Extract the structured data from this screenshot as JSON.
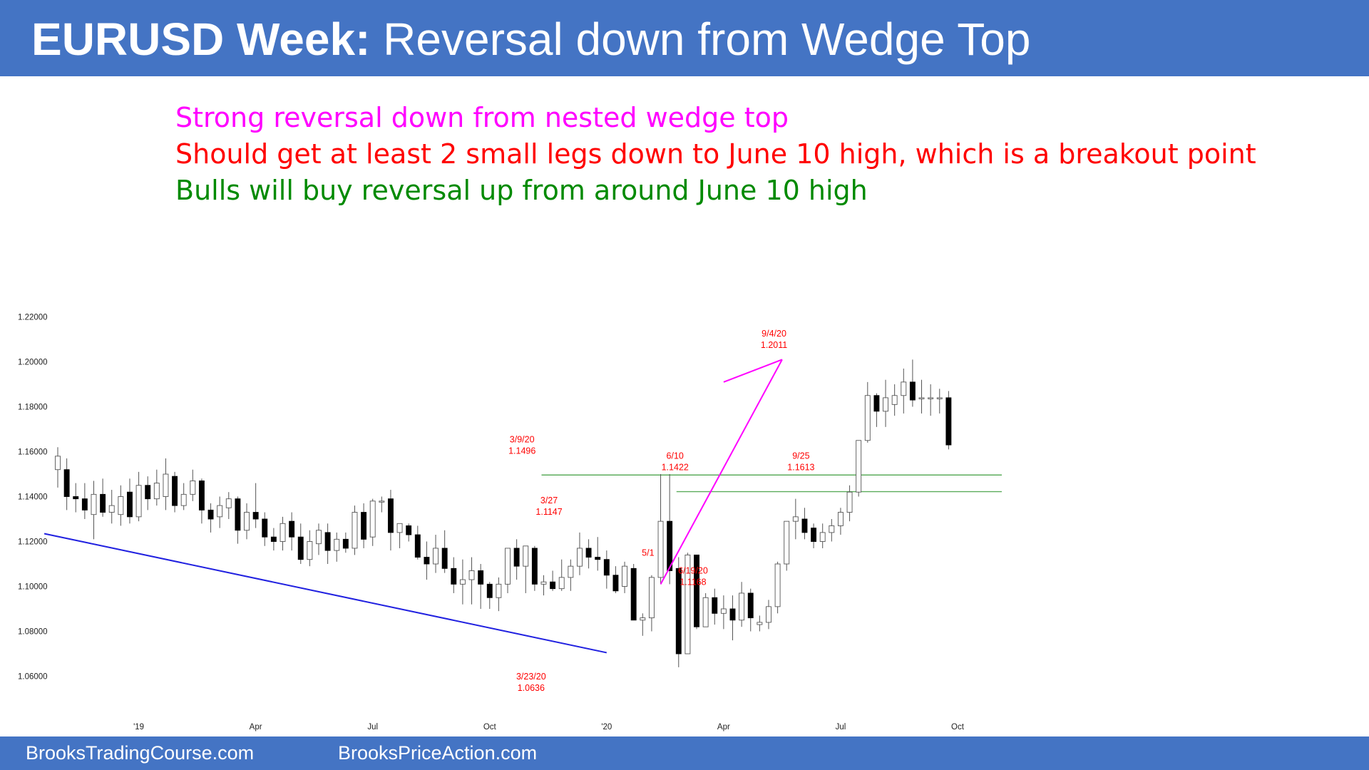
{
  "header": {
    "title_bold": "EURUSD Week:",
    "title_rest": " Reversal down from Wedge Top"
  },
  "notes": [
    {
      "text": "Strong reversal down from nested wedge top",
      "color": "#ff00ff"
    },
    {
      "text": "Should get at least 2 small legs down to June 10 high, which is a breakout point",
      "color": "#ff0000"
    },
    {
      "text": "Bulls will buy reversal up from around June 10 high",
      "color": "#008a00"
    }
  ],
  "footer": {
    "left": "BrooksTradingCourse.com",
    "right": "BrooksPriceAction.com"
  },
  "chart_data": {
    "type": "candlestick",
    "title": "",
    "xlabel": "",
    "ylabel": "",
    "ylim": [
      1.055,
      1.225
    ],
    "y_ticks": [
      "1.22000",
      "1.20000",
      "1.18000",
      "1.16000",
      "1.14000",
      "1.12000",
      "1.10000",
      "1.08000",
      "1.06000"
    ],
    "x_ticks": [
      {
        "label": "'19",
        "bar": 9
      },
      {
        "label": "Apr",
        "bar": 22
      },
      {
        "label": "Jul",
        "bar": 35
      },
      {
        "label": "Oct",
        "bar": 48
      },
      {
        "label": "'20",
        "bar": 61
      },
      {
        "label": "Apr",
        "bar": 74
      },
      {
        "label": "Jul",
        "bar": 87
      },
      {
        "label": "Oct",
        "bar": 100
      }
    ],
    "colors": {
      "bull": "#ffffff",
      "bear": "#000000",
      "wedge": "#ff00ff",
      "trendline": "#2020e0",
      "levels": "#5cac5c",
      "annotation": "#ff0000"
    },
    "candles": [
      [
        1.152,
        1.162,
        1.144,
        1.158
      ],
      [
        1.152,
        1.157,
        1.134,
        1.14
      ],
      [
        1.14,
        1.146,
        1.133,
        1.139
      ],
      [
        1.139,
        1.146,
        1.13,
        1.134
      ],
      [
        1.132,
        1.147,
        1.121,
        1.141
      ],
      [
        1.141,
        1.148,
        1.131,
        1.133
      ],
      [
        1.133,
        1.143,
        1.128,
        1.136
      ],
      [
        1.132,
        1.145,
        1.127,
        1.14
      ],
      [
        1.142,
        1.148,
        1.128,
        1.131
      ],
      [
        1.131,
        1.151,
        1.129,
        1.145
      ],
      [
        1.145,
        1.149,
        1.134,
        1.139
      ],
      [
        1.139,
        1.152,
        1.136,
        1.146
      ],
      [
        1.14,
        1.157,
        1.134,
        1.15
      ],
      [
        1.149,
        1.151,
        1.133,
        1.136
      ],
      [
        1.136,
        1.146,
        1.134,
        1.141
      ],
      [
        1.141,
        1.152,
        1.138,
        1.147
      ],
      [
        1.147,
        1.148,
        1.128,
        1.134
      ],
      [
        1.134,
        1.137,
        1.124,
        1.13
      ],
      [
        1.131,
        1.14,
        1.126,
        1.136
      ],
      [
        1.135,
        1.142,
        1.13,
        1.139
      ],
      [
        1.139,
        1.14,
        1.119,
        1.125
      ],
      [
        1.125,
        1.137,
        1.121,
        1.133
      ],
      [
        1.133,
        1.146,
        1.126,
        1.13
      ],
      [
        1.13,
        1.133,
        1.118,
        1.122
      ],
      [
        1.122,
        1.126,
        1.116,
        1.12
      ],
      [
        1.12,
        1.131,
        1.116,
        1.128
      ],
      [
        1.129,
        1.133,
        1.116,
        1.122
      ],
      [
        1.122,
        1.128,
        1.11,
        1.112
      ],
      [
        1.112,
        1.125,
        1.109,
        1.12
      ],
      [
        1.119,
        1.128,
        1.114,
        1.125
      ],
      [
        1.124,
        1.128,
        1.11,
        1.116
      ],
      [
        1.116,
        1.124,
        1.111,
        1.121
      ],
      [
        1.121,
        1.124,
        1.115,
        1.117
      ],
      [
        1.117,
        1.136,
        1.114,
        1.133
      ],
      [
        1.133,
        1.137,
        1.117,
        1.121
      ],
      [
        1.122,
        1.139,
        1.118,
        1.138
      ],
      [
        1.138,
        1.14,
        1.133,
        1.138
      ],
      [
        1.139,
        1.143,
        1.116,
        1.124
      ],
      [
        1.124,
        1.127,
        1.117,
        1.128
      ],
      [
        1.127,
        1.128,
        1.12,
        1.123
      ],
      [
        1.123,
        1.127,
        1.112,
        1.113
      ],
      [
        1.113,
        1.12,
        1.103,
        1.11
      ],
      [
        1.11,
        1.123,
        1.106,
        1.117
      ],
      [
        1.117,
        1.125,
        1.106,
        1.108
      ],
      [
        1.108,
        1.113,
        1.097,
        1.101
      ],
      [
        1.101,
        1.112,
        1.092,
        1.103
      ],
      [
        1.103,
        1.113,
        1.092,
        1.107
      ],
      [
        1.107,
        1.11,
        1.09,
        1.101
      ],
      [
        1.101,
        1.102,
        1.09,
        1.095
      ],
      [
        1.095,
        1.104,
        1.089,
        1.101
      ],
      [
        1.101,
        1.117,
        1.097,
        1.117
      ],
      [
        1.117,
        1.121,
        1.103,
        1.109
      ],
      [
        1.109,
        1.118,
        1.097,
        1.118
      ],
      [
        1.117,
        1.118,
        1.098,
        1.101
      ],
      [
        1.101,
        1.105,
        1.096,
        1.102
      ],
      [
        1.102,
        1.107,
        1.098,
        1.099
      ],
      [
        1.099,
        1.112,
        1.098,
        1.104
      ],
      [
        1.104,
        1.112,
        1.098,
        1.109
      ],
      [
        1.109,
        1.124,
        1.105,
        1.117
      ],
      [
        1.117,
        1.121,
        1.108,
        1.113
      ],
      [
        1.113,
        1.122,
        1.107,
        1.112
      ],
      [
        1.112,
        1.116,
        1.099,
        1.105
      ],
      [
        1.105,
        1.109,
        1.097,
        1.098
      ],
      [
        1.1,
        1.111,
        1.097,
        1.109
      ],
      [
        1.108,
        1.11,
        1.085,
        1.085
      ],
      [
        1.085,
        1.088,
        1.078,
        1.086
      ],
      [
        1.086,
        1.105,
        1.08,
        1.104
      ],
      [
        1.104,
        1.15,
        1.101,
        1.129
      ],
      [
        1.129,
        1.15,
        1.101,
        1.107
      ],
      [
        1.108,
        1.113,
        1.064,
        1.07
      ],
      [
        1.07,
        1.115,
        1.07,
        1.114
      ],
      [
        1.114,
        1.114,
        1.081,
        1.082
      ],
      [
        1.082,
        1.097,
        1.082,
        1.095
      ],
      [
        1.095,
        1.099,
        1.083,
        1.088
      ],
      [
        1.088,
        1.096,
        1.081,
        1.09
      ],
      [
        1.09,
        1.096,
        1.076,
        1.085
      ],
      [
        1.085,
        1.102,
        1.082,
        1.097
      ],
      [
        1.097,
        1.099,
        1.08,
        1.086
      ],
      [
        1.083,
        1.087,
        1.08,
        1.084
      ],
      [
        1.084,
        1.094,
        1.081,
        1.091
      ],
      [
        1.091,
        1.111,
        1.088,
        1.11
      ],
      [
        1.11,
        1.129,
        1.107,
        1.129
      ],
      [
        1.129,
        1.139,
        1.121,
        1.131
      ],
      [
        1.13,
        1.135,
        1.121,
        1.124
      ],
      [
        1.126,
        1.128,
        1.117,
        1.12
      ],
      [
        1.12,
        1.128,
        1.117,
        1.124
      ],
      [
        1.124,
        1.13,
        1.12,
        1.127
      ],
      [
        1.127,
        1.135,
        1.123,
        1.133
      ],
      [
        1.133,
        1.145,
        1.129,
        1.142
      ],
      [
        1.142,
        1.165,
        1.14,
        1.165
      ],
      [
        1.165,
        1.191,
        1.164,
        1.185
      ],
      [
        1.185,
        1.186,
        1.171,
        1.178
      ],
      [
        1.178,
        1.192,
        1.171,
        1.184
      ],
      [
        1.181,
        1.19,
        1.176,
        1.185
      ],
      [
        1.185,
        1.197,
        1.177,
        1.191
      ],
      [
        1.191,
        1.201,
        1.18,
        1.183
      ],
      [
        1.184,
        1.192,
        1.177,
        1.184
      ],
      [
        1.184,
        1.19,
        1.176,
        1.184
      ],
      [
        1.184,
        1.188,
        1.177,
        1.184
      ],
      [
        1.184,
        1.187,
        1.161,
        1.163
      ]
    ],
    "lines": [
      {
        "name": "wedge-top-line",
        "from": [
          67,
          1.101
        ],
        "to": [
          80.5,
          1.201
        ]
      },
      {
        "name": "wedge-upper-line",
        "from": [
          74,
          1.191
        ],
        "to": [
          80.5,
          1.201
        ]
      },
      {
        "name": "downtrend-line",
        "from": [
          -1.5,
          1.1235
        ],
        "to": [
          61,
          1.0705
        ]
      }
    ],
    "levels": [
      {
        "name": "march-9-high-level",
        "y": 1.1496,
        "from_bar": 54
      },
      {
        "name": "june-10-high-level",
        "y": 1.1422,
        "from_bar": 69
      }
    ],
    "annotations": [
      {
        "name": "sep-4-label",
        "bar": 79.6,
        "y": 1.2011,
        "dy": -32,
        "lines": [
          "9/4/20",
          "1.2011"
        ]
      },
      {
        "name": "sep-25-label",
        "bar": 82.6,
        "y": 1.1613,
        "dy": 14,
        "lines": [
          "9/25",
          "1.1613"
        ]
      },
      {
        "name": "mar-9-label",
        "bar": 51.6,
        "y": 1.1496,
        "dy": -46,
        "lines": [
          "3/9/20",
          "1.1496"
        ]
      },
      {
        "name": "jun-10-label",
        "bar": 68.6,
        "y": 1.1422,
        "dy": -46,
        "lines": [
          "6/10",
          "1.1422"
        ]
      },
      {
        "name": "mar-27-label",
        "bar": 54.6,
        "y": 1.1147,
        "dy": -70,
        "lines": [
          "3/27",
          "1.1147"
        ]
      },
      {
        "name": "may-1-label",
        "bar": 65.6,
        "y": 1.101,
        "dy": -40,
        "lines": [
          "5/1"
        ]
      },
      {
        "name": "jun-19-label",
        "bar": 70.6,
        "y": 1.1168,
        "dy": 35,
        "lines": [
          "6/19/20",
          "1.1168"
        ]
      },
      {
        "name": "mar-23-label",
        "bar": 52.6,
        "y": 1.0636,
        "dy": 16,
        "lines": [
          "3/23/20",
          "1.0636"
        ]
      }
    ]
  }
}
